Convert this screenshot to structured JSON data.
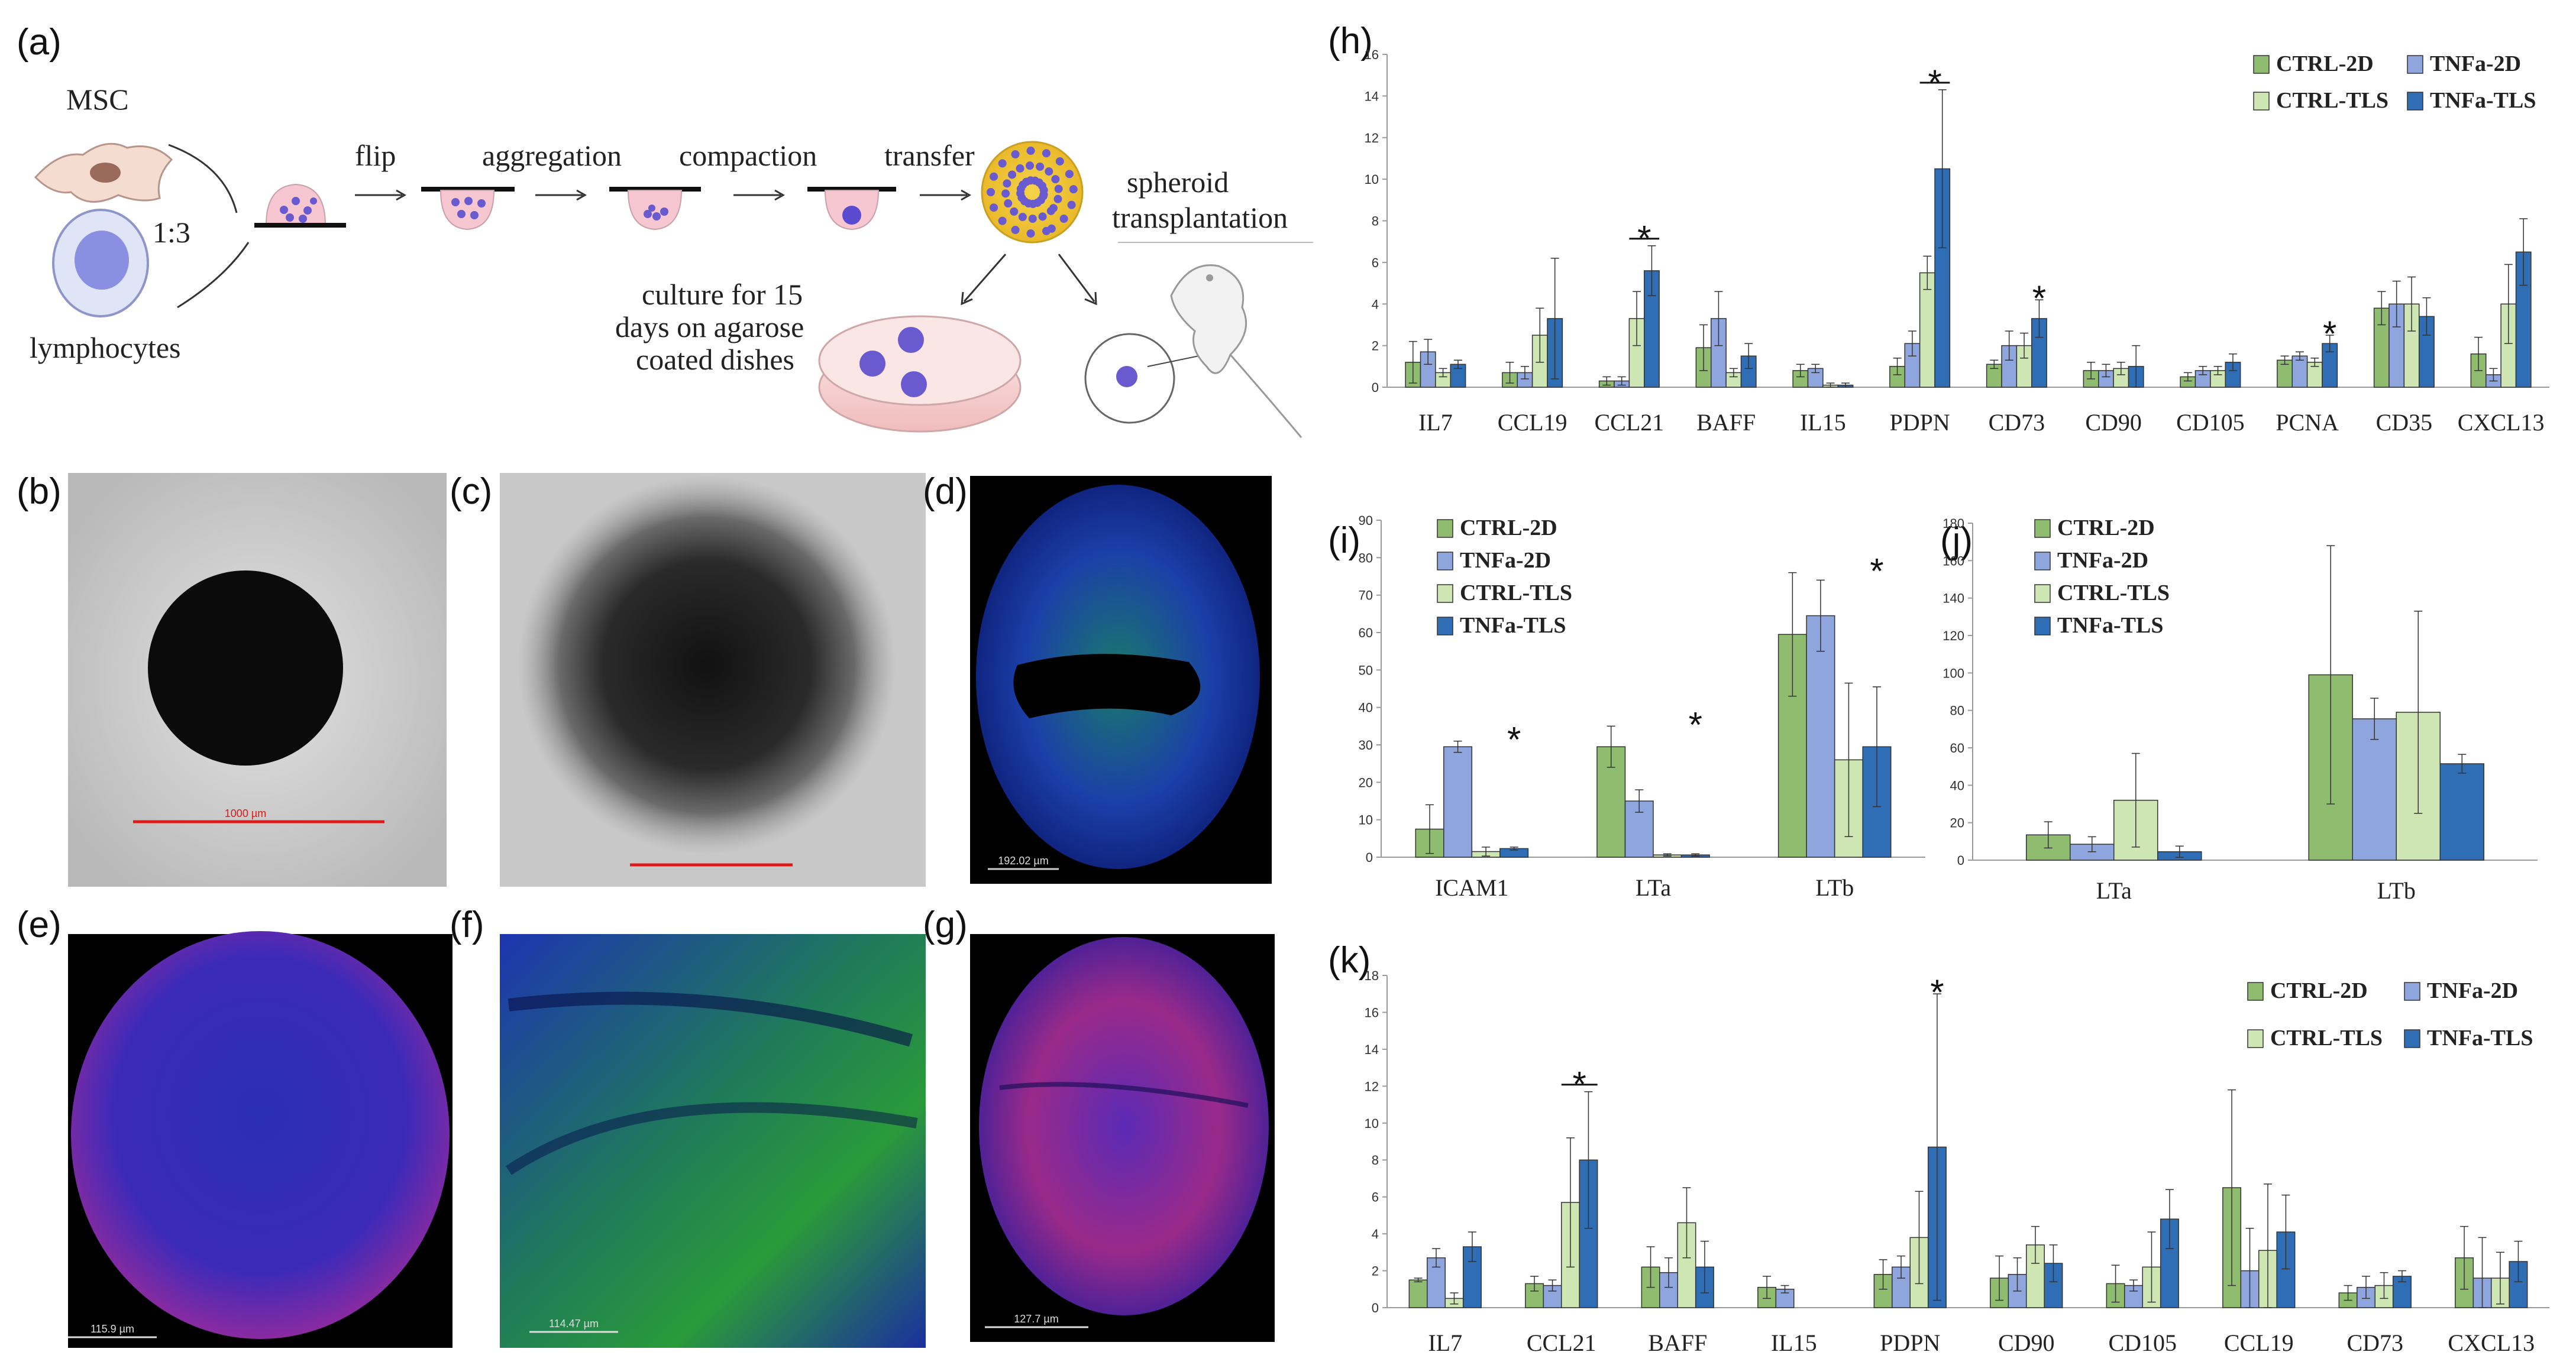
{
  "panel_labels": {
    "a": "(a)",
    "b": "(b)",
    "c": "(c)",
    "d": "(d)",
    "e": "(e)",
    "f": "(f)",
    "g": "(g)",
    "h": "(h)",
    "i": "(i)",
    "j": "(j)",
    "k": "(k)"
  },
  "schematic": {
    "msc": "MSC",
    "lymphocytes": "lymphocytes",
    "ratio": "1:3",
    "flip": "flip",
    "aggregation": "aggregation",
    "compaction": "compaction",
    "transfer": "transfer",
    "spheroid_line1": "spheroid",
    "spheroid_line2": "transplantation",
    "culture_line1": "culture for 15",
    "culture_line2": "days on agarose",
    "culture_line3": "coated dishes"
  },
  "micrographs": {
    "b_scale": "1000 µm",
    "d_scale": "192.02 µm",
    "e_scale": "115.9 µm",
    "f_scale": "114.47 µm",
    "g_scale": "127.7 µm"
  },
  "colors": {
    "CTRL-2D": "#8fbc6f",
    "TNFa-2D": "#8ea5dd",
    "CTRL-TLS": "#cde6b4",
    "TNFa-TLS": "#2f6db4"
  },
  "chart_data": [
    {
      "id": "h",
      "type": "bar",
      "title": "",
      "categories": [
        "IL7",
        "CCL19",
        "CCL21",
        "BAFF",
        "IL15",
        "PDPN",
        "CD73",
        "CD90",
        "CD105",
        "PCNA",
        "CD35",
        "CXCL13"
      ],
      "ylim": [
        0,
        16
      ],
      "yticks": [
        0,
        2,
        4,
        6,
        8,
        10,
        12,
        14,
        16
      ],
      "legend_position": "top-right",
      "series": [
        {
          "name": "CTRL-2D",
          "values": [
            1.2,
            0.7,
            0.3,
            1.9,
            0.8,
            1.0,
            1.1,
            0.8,
            0.5,
            1.3,
            3.8,
            1.6
          ],
          "errors": [
            1.0,
            0.5,
            0.2,
            1.1,
            0.3,
            0.4,
            0.2,
            0.4,
            0.2,
            0.2,
            0.8,
            0.8
          ]
        },
        {
          "name": "TNFa-2D",
          "values": [
            1.7,
            0.7,
            0.3,
            3.3,
            0.9,
            2.1,
            2.0,
            0.8,
            0.8,
            1.5,
            4.0,
            0.6
          ],
          "errors": [
            0.6,
            0.3,
            0.2,
            1.3,
            0.2,
            0.6,
            0.7,
            0.3,
            0.2,
            0.2,
            1.1,
            0.3
          ]
        },
        {
          "name": "CTRL-TLS",
          "values": [
            0.7,
            2.5,
            3.3,
            0.7,
            0.1,
            5.5,
            2.0,
            0.9,
            0.8,
            1.2,
            4.0,
            4.0
          ],
          "errors": [
            0.2,
            1.3,
            1.3,
            0.2,
            0.1,
            0.8,
            0.6,
            0.3,
            0.2,
            0.2,
            1.3,
            1.9
          ]
        },
        {
          "name": "TNFa-TLS",
          "values": [
            1.1,
            3.3,
            5.6,
            1.5,
            0.1,
            10.5,
            3.3,
            1.0,
            1.2,
            2.1,
            3.4,
            6.5
          ],
          "errors": [
            0.2,
            2.9,
            1.2,
            0.6,
            0.1,
            3.8,
            0.9,
            1.0,
            0.4,
            0.4,
            0.9,
            1.6
          ]
        }
      ],
      "significance": [
        {
          "category": "CCL21",
          "label": "*",
          "bracket": true
        },
        {
          "category": "PDPN",
          "label": "*",
          "bracket": true
        },
        {
          "category": "CD73",
          "label": "*",
          "bracket": false
        },
        {
          "category": "PCNA",
          "label": "*",
          "bracket": false
        }
      ]
    },
    {
      "id": "i",
      "type": "bar",
      "title": "",
      "categories": [
        "ICAM1",
        "LTa",
        "LTb"
      ],
      "ylim": [
        0,
        90
      ],
      "yticks": [
        0,
        10,
        20,
        30,
        40,
        50,
        60,
        70,
        80,
        90
      ],
      "legend_position": "top-left",
      "series": [
        {
          "name": "CTRL-2D",
          "values": [
            7.5,
            29.5,
            59.5
          ],
          "errors": [
            6.5,
            5.5,
            16.5
          ]
        },
        {
          "name": "TNFa-2D",
          "values": [
            29.5,
            15.0,
            64.5
          ],
          "errors": [
            1.5,
            3.0,
            9.5
          ]
        },
        {
          "name": "CTRL-TLS",
          "values": [
            1.5,
            0.6,
            26.0
          ],
          "errors": [
            1.2,
            0.3,
            20.5
          ]
        },
        {
          "name": "TNFa-TLS",
          "values": [
            2.3,
            0.6,
            29.5
          ],
          "errors": [
            0.4,
            0.3,
            16.0
          ]
        }
      ],
      "significance": [
        {
          "category": "ICAM1",
          "label": "*",
          "bracket": false
        },
        {
          "category": "LTa",
          "label": "*",
          "bracket": false
        },
        {
          "category": "LTb",
          "label": "*",
          "bracket": false
        }
      ]
    },
    {
      "id": "j",
      "type": "bar",
      "title": "",
      "categories": [
        "LTa",
        "LTb"
      ],
      "ylim": [
        0,
        180
      ],
      "yticks": [
        0,
        20,
        40,
        60,
        80,
        100,
        120,
        140,
        160,
        180
      ],
      "legend_position": "top-left",
      "series": [
        {
          "name": "CTRL-2D",
          "values": [
            13.5,
            99.0
          ],
          "errors": [
            7.0,
            69.0
          ]
        },
        {
          "name": "TNFa-2D",
          "values": [
            8.5,
            75.5
          ],
          "errors": [
            4.0,
            11.0
          ]
        },
        {
          "name": "CTRL-TLS",
          "values": [
            32.0,
            79.0
          ],
          "errors": [
            25.0,
            54.0
          ]
        },
        {
          "name": "TNFa-TLS",
          "values": [
            4.5,
            51.5
          ],
          "errors": [
            3.0,
            5.0
          ]
        }
      ],
      "significance": []
    },
    {
      "id": "k",
      "type": "bar",
      "title": "",
      "categories": [
        "IL7",
        "CCL21",
        "BAFF",
        "IL15",
        "PDPN",
        "CD90",
        "CD105",
        "CCL19",
        "CD73",
        "CXCL13"
      ],
      "ylim": [
        0,
        18
      ],
      "yticks": [
        0,
        2,
        4,
        6,
        8,
        10,
        12,
        14,
        16,
        18
      ],
      "legend_position": "top-right",
      "series": [
        {
          "name": "CTRL-2D",
          "values": [
            1.5,
            1.3,
            2.2,
            1.1,
            1.8,
            1.6,
            1.3,
            6.5,
            0.8,
            2.7
          ],
          "errors": [
            0.1,
            0.4,
            1.1,
            0.6,
            0.8,
            1.2,
            1.0,
            5.3,
            0.4,
            1.7
          ]
        },
        {
          "name": "TNFa-2D",
          "values": [
            2.7,
            1.2,
            1.9,
            1.0,
            2.2,
            1.8,
            1.2,
            2.0,
            1.1,
            1.6
          ],
          "errors": [
            0.5,
            0.3,
            0.8,
            0.2,
            0.6,
            0.9,
            0.3,
            2.3,
            0.6,
            2.2
          ]
        },
        {
          "name": "CTRL-TLS",
          "values": [
            0.5,
            5.7,
            4.6,
            0.0,
            3.8,
            3.4,
            2.2,
            3.1,
            1.2,
            1.6
          ],
          "errors": [
            0.3,
            3.5,
            1.9,
            0.0,
            2.5,
            1.0,
            1.9,
            3.6,
            0.7,
            1.4
          ]
        },
        {
          "name": "TNFa-TLS",
          "values": [
            3.3,
            8.0,
            2.2,
            0.0,
            8.7,
            2.4,
            4.8,
            4.1,
            1.7,
            2.5
          ],
          "errors": [
            0.8,
            3.7,
            1.4,
            0.0,
            8.3,
            1.0,
            1.6,
            2.0,
            0.3,
            1.1
          ]
        }
      ],
      "significance": [
        {
          "category": "CCL21",
          "label": "*",
          "bracket": true
        },
        {
          "category": "PDPN",
          "label": "*",
          "bracket": false
        }
      ]
    }
  ]
}
